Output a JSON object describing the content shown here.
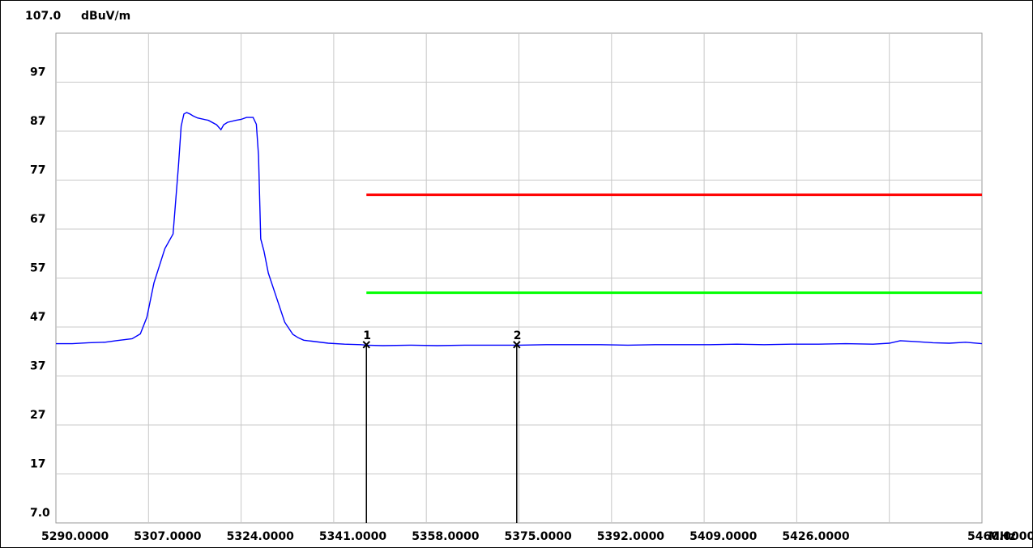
{
  "chart_data": {
    "type": "line",
    "title": "",
    "y_top_label": "107.0",
    "y_unit": "dBuV/m",
    "x_unit": "MHz",
    "ylim": [
      7.0,
      107.0
    ],
    "xlim": [
      5290.0,
      5460.0
    ],
    "y_ticks": [
      {
        "v": 97,
        "label": "97"
      },
      {
        "v": 87,
        "label": "87"
      },
      {
        "v": 77,
        "label": "77"
      },
      {
        "v": 67,
        "label": "67"
      },
      {
        "v": 57,
        "label": "57"
      },
      {
        "v": 47,
        "label": "47"
      },
      {
        "v": 37,
        "label": "37"
      },
      {
        "v": 27,
        "label": "27"
      },
      {
        "v": 17,
        "label": "17"
      },
      {
        "v": 7.0,
        "label": "7.0"
      }
    ],
    "x_grid": [
      5290,
      5307,
      5324,
      5341,
      5358,
      5375,
      5392,
      5409,
      5426,
      5443,
      5460
    ],
    "x_tick_labels": [
      {
        "v": 5290,
        "label": "5290.0000"
      },
      {
        "v": 5307,
        "label": "5307.0000"
      },
      {
        "v": 5324,
        "label": "5324.0000"
      },
      {
        "v": 5341,
        "label": "5341.0000"
      },
      {
        "v": 5358,
        "label": "5358.0000"
      },
      {
        "v": 5375,
        "label": "5375.0000"
      },
      {
        "v": 5392,
        "label": "5392.0000"
      },
      {
        "v": 5409,
        "label": "5409.0000"
      },
      {
        "v": 5426,
        "label": "5426.0000"
      },
      {
        "v": 5460,
        "label": "5460.0000"
      }
    ],
    "grid": true,
    "series": [
      {
        "color": "#0000ff",
        "x": [
          5290,
          5293,
          5296,
          5299,
          5301,
          5304,
          5305.5,
          5306.7,
          5308,
          5310,
          5311.5,
          5312.5,
          5313,
          5313.5,
          5314,
          5314.6,
          5315.2,
          5316,
          5318,
          5319.5,
          5320.3,
          5320.8,
          5321.5,
          5323,
          5324,
          5325,
          5326.2,
          5326.8,
          5327.2,
          5327.6,
          5328.2,
          5329,
          5330.5,
          5332,
          5333.5,
          5334.5,
          5335.5,
          5337,
          5340,
          5343,
          5346,
          5347,
          5350,
          5355,
          5360,
          5365,
          5370,
          5375,
          5380,
          5385,
          5390,
          5395,
          5400,
          5405,
          5410,
          5415,
          5420,
          5425,
          5430,
          5435,
          5440,
          5443,
          5445,
          5448,
          5451,
          5454,
          5457,
          5460
        ],
        "y": [
          43.6,
          43.6,
          43.8,
          43.9,
          44.2,
          44.6,
          45.6,
          49,
          56,
          63,
          66,
          80,
          88,
          90.5,
          90.8,
          90.5,
          90.1,
          89.7,
          89.2,
          88.3,
          87.3,
          88.3,
          88.8,
          89.2,
          89.4,
          89.8,
          89.8,
          88.4,
          82,
          65,
          62.5,
          58,
          53,
          48,
          45.5,
          44.8,
          44.3,
          44.1,
          43.7,
          43.5,
          43.4,
          43.3,
          43.2,
          43.3,
          43.2,
          43.3,
          43.3,
          43.3,
          43.4,
          43.4,
          43.4,
          43.3,
          43.4,
          43.4,
          43.4,
          43.5,
          43.4,
          43.5,
          43.5,
          43.6,
          43.5,
          43.7,
          44.2,
          44,
          43.8,
          43.7,
          43.9,
          43.6
        ]
      }
    ],
    "limit_lines": [
      {
        "color": "#ff0000",
        "x_start": 5347.0,
        "x_end": 5460.0,
        "y": 74.0
      },
      {
        "color": "#00ff00",
        "x_start": 5347.0,
        "x_end": 5460.0,
        "y": 54.0
      }
    ],
    "markers": [
      {
        "label": "1",
        "x": 5347.0,
        "y": 43.4
      },
      {
        "label": "2",
        "x": 5374.6,
        "y": 43.4
      }
    ]
  }
}
